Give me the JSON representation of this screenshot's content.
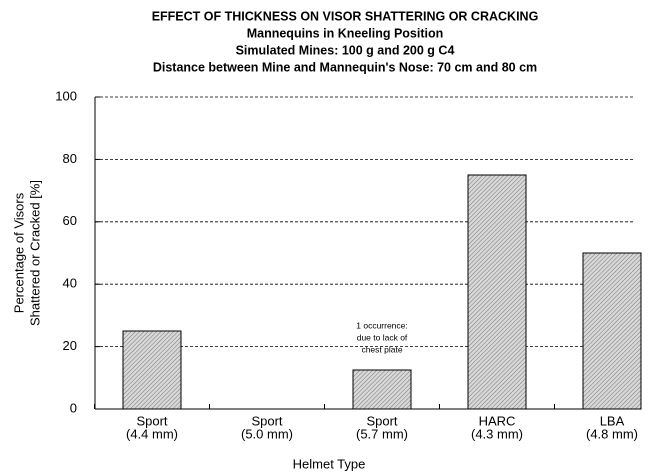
{
  "chart_data": {
    "type": "bar",
    "title": [
      "EFFECT OF THICKNESS ON VISOR SHATTERING OR CRACKING",
      "Mannequins in Kneeling Position",
      "Simulated Mines: 100 g and 200 g C4",
      "Distance between Mine and Mannequin's Nose: 70 cm and 80 cm"
    ],
    "categories": [
      [
        "Sport",
        "(4.4 mm)"
      ],
      [
        "Sport",
        "(5.0 mm)"
      ],
      [
        "Sport",
        "(5.7 mm)"
      ],
      [
        "HARC",
        "(4.3 mm)"
      ],
      [
        "LBA",
        "(4.8 mm)"
      ]
    ],
    "values": [
      25,
      0,
      12.5,
      75,
      50
    ],
    "color": "#bbbbbb",
    "ylim": [
      0,
      100
    ],
    "yticks": [
      0,
      20,
      40,
      60,
      80,
      100
    ],
    "grid": true,
    "xlabel": "Helmet Type",
    "ylabel": [
      "Percentage of  Visors",
      "Shattered or Cracked [%]"
    ],
    "annotations": [
      {
        "category": 2,
        "text": [
          "1 occurrence:",
          "due to lack of",
          "chest plate"
        ]
      }
    ]
  }
}
